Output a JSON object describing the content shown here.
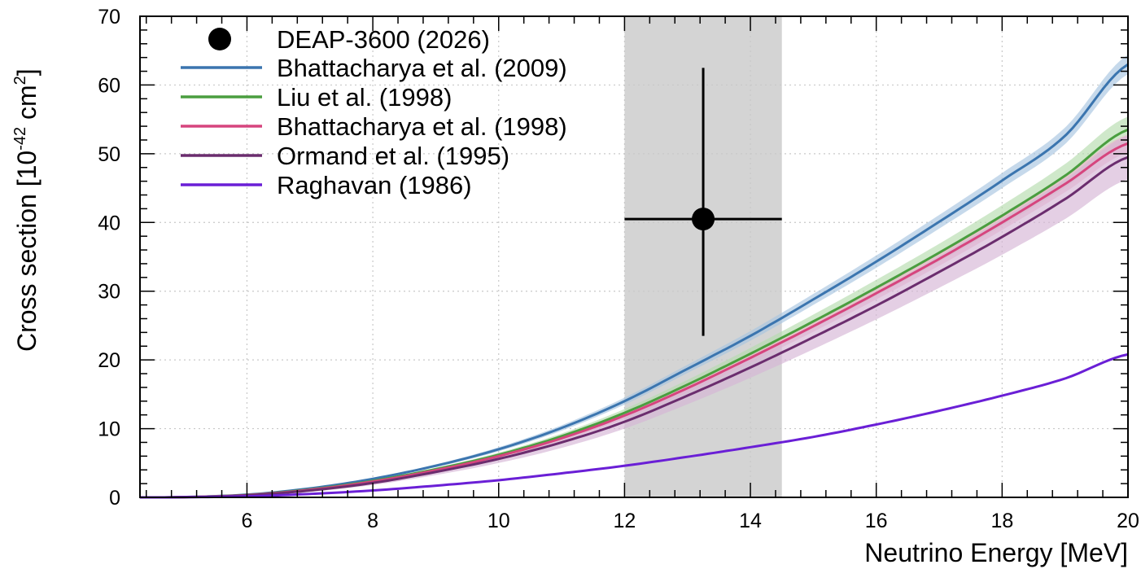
{
  "chart_data": {
    "type": "line",
    "xlabel": "Neutrino Energy [MeV]",
    "ylabel": {
      "prefix": "Cross section [10",
      "exp1": "-42",
      "middle": " cm",
      "exp2": "2",
      "suffix": "]"
    },
    "xlim": [
      4.3,
      20
    ],
    "ylim": [
      0,
      70
    ],
    "xticks": [
      6,
      8,
      10,
      12,
      14,
      16,
      18,
      20
    ],
    "yticks": [
      0,
      10,
      20,
      30,
      40,
      50,
      60,
      70
    ],
    "xtick_labels": [
      "6",
      "8",
      "10",
      "12",
      "14",
      "16",
      "18",
      "20"
    ],
    "ytick_labels": [
      "0",
      "10",
      "20",
      "30",
      "40",
      "50",
      "60",
      "70"
    ],
    "grid": true,
    "legend_position": "top-left",
    "shaded_region": {
      "x": [
        12.0,
        14.5
      ],
      "color": "#d4d4d4"
    },
    "measurement": {
      "name": "DEAP-3600 (2026)",
      "x": 13.25,
      "y": 40.5,
      "x_err": [
        12.0,
        14.5
      ],
      "y_err": [
        23.5,
        62.5
      ],
      "color": "#000000"
    },
    "series": [
      {
        "name": "Bhattacharya et al. (2009)",
        "color": "#3b75af",
        "band_color": "#a8c4e0",
        "x": [
          4.3,
          5,
          6,
          7,
          8,
          9,
          10,
          11,
          12,
          13,
          14,
          15,
          16,
          17,
          18,
          19,
          20
        ],
        "values": [
          0,
          0.05,
          0.4,
          1.3,
          2.7,
          4.6,
          7.0,
          10.1,
          14.0,
          18.7,
          23.5,
          28.8,
          34.3,
          40.1,
          46.1,
          52.6,
          63.0
        ],
        "band_halfwidth": [
          0,
          0,
          0.05,
          0.1,
          0.15,
          0.2,
          0.3,
          0.4,
          0.5,
          0.6,
          0.7,
          0.8,
          0.9,
          1.0,
          1.1,
          1.2,
          1.4
        ]
      },
      {
        "name": "Liu et al. (1998)",
        "color": "#4a9e3f",
        "band_color": "#b5dcae",
        "x": [
          4.3,
          5,
          6,
          7,
          8,
          9,
          10,
          11,
          12,
          13,
          14,
          15,
          16,
          17,
          18,
          19,
          20
        ],
        "values": [
          0,
          0.04,
          0.35,
          1.15,
          2.4,
          4.1,
          6.2,
          8.9,
          12.3,
          16.4,
          20.9,
          25.6,
          30.5,
          35.6,
          41.0,
          46.8,
          53.5
        ],
        "band_halfwidth": [
          0,
          0,
          0.05,
          0.1,
          0.15,
          0.2,
          0.3,
          0.4,
          0.55,
          0.7,
          0.85,
          1.0,
          1.15,
          1.3,
          1.5,
          1.7,
          1.9
        ]
      },
      {
        "name": "Bhattacharya et al. (1998)",
        "color": "#d6457e",
        "band_color": "#efb3cb",
        "x": [
          4.3,
          5,
          6,
          7,
          8,
          9,
          10,
          11,
          12,
          13,
          14,
          15,
          16,
          17,
          18,
          19,
          20
        ],
        "values": [
          0,
          0.04,
          0.33,
          1.1,
          2.3,
          3.95,
          6.0,
          8.6,
          11.9,
          15.9,
          20.3,
          24.9,
          29.7,
          34.7,
          40.0,
          45.6,
          51.5
        ],
        "band_halfwidth": [
          0,
          0,
          0.05,
          0.1,
          0.15,
          0.2,
          0.3,
          0.4,
          0.5,
          0.6,
          0.7,
          0.8,
          0.9,
          1.0,
          1.1,
          1.2,
          1.3
        ]
      },
      {
        "name": "Ormand et al. (1995)",
        "color": "#6b2d6e",
        "band_color": "#d5b6d6",
        "x": [
          4.3,
          5,
          6,
          7,
          8,
          9,
          10,
          11,
          12,
          13,
          14,
          15,
          16,
          17,
          18,
          19,
          20
        ],
        "values": [
          0,
          0.03,
          0.3,
          1.0,
          2.1,
          3.7,
          5.6,
          8.0,
          11.0,
          14.8,
          18.9,
          23.3,
          27.9,
          32.8,
          37.9,
          43.4,
          49.5
        ],
        "band_halfwidth": [
          0,
          0,
          0.1,
          0.2,
          0.3,
          0.45,
          0.6,
          0.8,
          1.0,
          1.25,
          1.5,
          1.75,
          2.0,
          2.3,
          2.6,
          2.9,
          3.2
        ]
      },
      {
        "name": "Raghavan (1986)",
        "color": "#6a1fd6",
        "band_color": null,
        "x": [
          4.3,
          5,
          6,
          7,
          8,
          9,
          10,
          11,
          12,
          13,
          14,
          15,
          16,
          17,
          18,
          19,
          20
        ],
        "values": [
          0,
          0.02,
          0.15,
          0.5,
          1.0,
          1.7,
          2.5,
          3.5,
          4.6,
          5.9,
          7.3,
          8.8,
          10.6,
          12.6,
          14.8,
          17.3,
          20.8
        ],
        "band_halfwidth": null
      }
    ]
  }
}
